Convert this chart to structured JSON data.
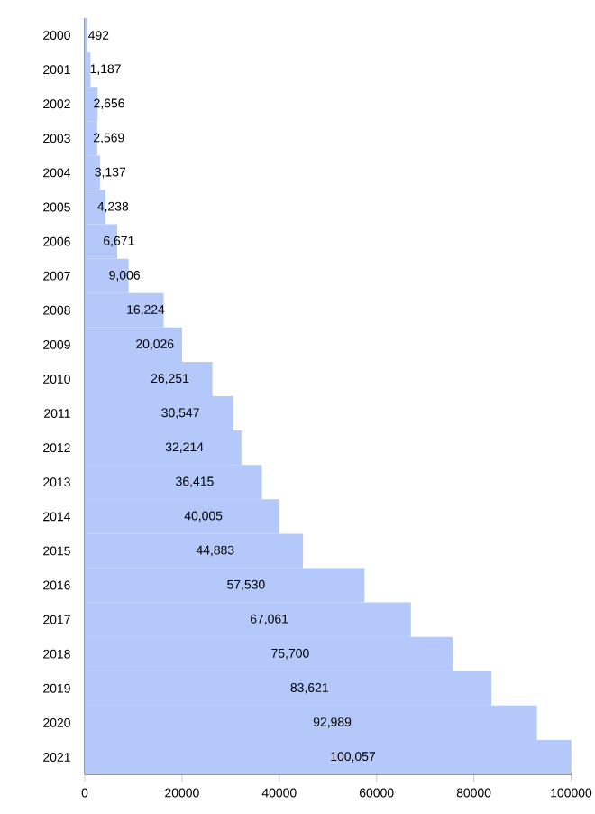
{
  "chart_data": {
    "type": "bar",
    "orientation": "horizontal",
    "categories": [
      "2000",
      "2001",
      "2002",
      "2003",
      "2004",
      "2005",
      "2006",
      "2007",
      "2008",
      "2009",
      "2010",
      "2011",
      "2012",
      "2013",
      "2014",
      "2015",
      "2016",
      "2017",
      "2018",
      "2019",
      "2020",
      "2021"
    ],
    "values": [
      492,
      1187,
      2656,
      2569,
      3137,
      4238,
      6671,
      9006,
      16224,
      20026,
      26251,
      30547,
      32214,
      36415,
      40005,
      44883,
      57530,
      67061,
      75700,
      83621,
      92989,
      100057
    ],
    "value_labels": [
      "492",
      "1,187",
      "2,656",
      "2,569",
      "3,137",
      "4,238",
      "6,671",
      "9,006",
      "16,224",
      "20,026",
      "26,251",
      "30,547",
      "32,214",
      "36,415",
      "40,005",
      "44,883",
      "57,530",
      "67,061",
      "75,700",
      "83,621",
      "92,989",
      "100,057"
    ],
    "color": "#b4c8fa",
    "xlim": [
      0,
      100100
    ],
    "xticks": [
      0,
      20000,
      40000,
      60000,
      80000,
      100000
    ],
    "grid": false
  }
}
